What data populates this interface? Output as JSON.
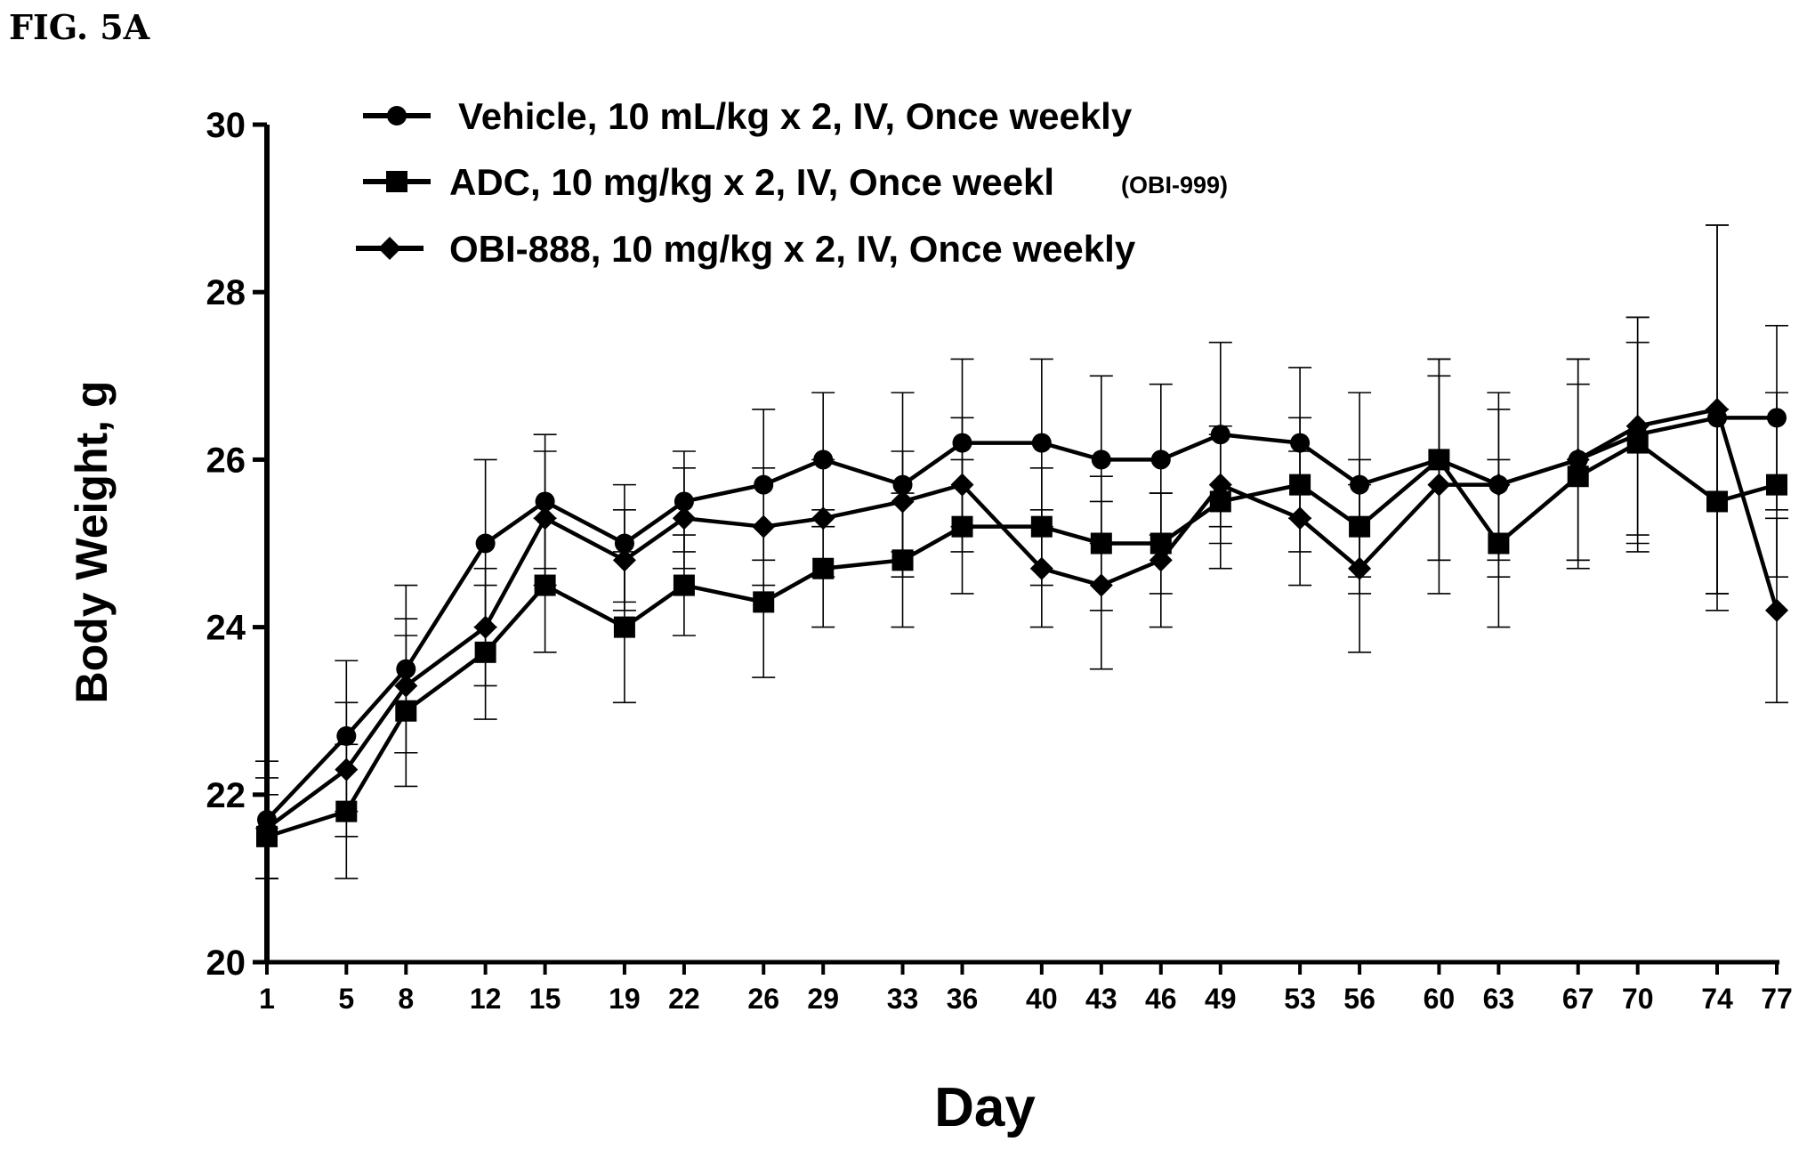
{
  "figure_label": "FIG. 5A",
  "chart_data": {
    "type": "line",
    "xlabel": "Day",
    "ylabel": "Body Weight, g",
    "ylim": [
      20,
      30
    ],
    "yticks": [
      20,
      22,
      24,
      26,
      28,
      30
    ],
    "ytick_labels": [
      "20",
      "22",
      "24",
      "26",
      "28",
      "30"
    ],
    "x": [
      1,
      5,
      8,
      12,
      15,
      19,
      22,
      26,
      29,
      33,
      36,
      40,
      43,
      46,
      49,
      53,
      56,
      60,
      63,
      67,
      70,
      74,
      77
    ],
    "xtick_labels": [
      "1",
      "5",
      "8",
      "12",
      "15",
      "19",
      "22",
      "26",
      "29",
      "33",
      "36",
      "40",
      "43",
      "46",
      "49",
      "53",
      "56",
      "60",
      "63",
      "67",
      "70",
      "74",
      "77"
    ],
    "grid": false,
    "legend_position": "top",
    "series": [
      {
        "name": "Vehicle, 10 mL/kg x 2, IV, Once weekly",
        "marker": "circle",
        "values": [
          21.7,
          22.7,
          23.5,
          25.0,
          25.5,
          25.0,
          25.5,
          25.7,
          26.0,
          25.7,
          26.2,
          26.2,
          26.0,
          26.0,
          26.3,
          26.2,
          25.7,
          26.0,
          25.7,
          26.0,
          26.3,
          26.5,
          26.5
        ],
        "error": [
          0.7,
          0.9,
          1.0,
          1.0,
          0.8,
          0.7,
          0.6,
          0.9,
          0.8,
          1.1,
          1.0,
          1.0,
          1.0,
          0.9,
          1.1,
          0.9,
          1.1,
          1.2,
          1.1,
          1.2,
          1.4,
          2.3,
          1.1
        ]
      },
      {
        "name": "ADC, 10 mg/kg x 2, IV, Once weekl",
        "name_note": "(OBI-999)",
        "marker": "square",
        "values": [
          21.5,
          21.8,
          23.0,
          23.7,
          24.5,
          24.0,
          24.5,
          24.3,
          24.7,
          24.8,
          25.2,
          25.2,
          25.0,
          25.0,
          25.5,
          25.7,
          25.2,
          26.0,
          25.0,
          25.8,
          26.2,
          25.5,
          25.7
        ],
        "error": [
          0.5,
          0.8,
          0.9,
          0.8,
          0.8,
          0.9,
          0.6,
          0.9,
          0.7,
          0.8,
          0.8,
          0.7,
          0.8,
          0.6,
          0.8,
          0.8,
          0.8,
          1.2,
          1.0,
          1.1,
          1.2,
          1.1,
          1.1
        ]
      },
      {
        "name": "OBI-888, 10 mg/kg x 2, IV, Once weekly",
        "marker": "diamond",
        "values": [
          21.6,
          22.3,
          23.3,
          24.0,
          25.3,
          24.8,
          25.3,
          25.2,
          25.3,
          25.5,
          25.7,
          24.7,
          24.5,
          24.8,
          25.7,
          25.3,
          24.7,
          25.7,
          25.7,
          26.0,
          26.4,
          26.6,
          24.2
        ],
        "error": [
          0.6,
          0.8,
          0.8,
          0.7,
          0.8,
          0.6,
          0.6,
          0.7,
          0.7,
          0.6,
          0.8,
          0.7,
          1.0,
          0.8,
          0.7,
          0.8,
          1.0,
          1.3,
          0.9,
          1.2,
          1.3,
          2.2,
          1.1
        ]
      }
    ]
  }
}
